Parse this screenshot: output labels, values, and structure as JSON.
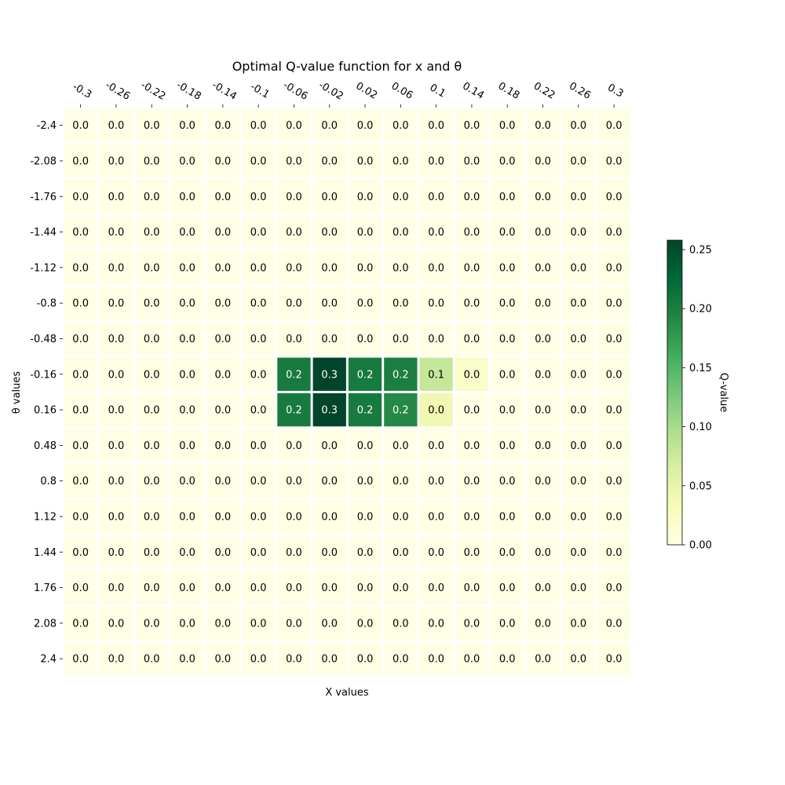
{
  "chart_data": {
    "type": "heatmap",
    "title": "Optimal Q-value function for x and θ",
    "xlabel": "X values",
    "ylabel": "θ values",
    "x_categories": [
      "-0.3",
      "-0.26",
      "-0.22",
      "-0.18",
      "-0.14",
      "-0.1",
      "-0.06",
      "-0.02",
      "0.02",
      "0.06",
      "0.1",
      "0.14",
      "0.18",
      "0.22",
      "0.26",
      "0.3"
    ],
    "y_categories": [
      "-2.4",
      "-2.08",
      "-1.76",
      "-1.44",
      "-1.12",
      "-0.8",
      "-0.48",
      "-0.16",
      "0.16",
      "0.48",
      "0.8",
      "1.12",
      "1.44",
      "1.76",
      "2.08",
      "2.4"
    ],
    "values": [
      [
        0,
        0,
        0,
        0,
        0,
        0,
        0,
        0,
        0,
        0,
        0,
        0,
        0,
        0,
        0,
        0
      ],
      [
        0,
        0,
        0,
        0,
        0,
        0,
        0,
        0,
        0,
        0,
        0,
        0,
        0,
        0,
        0,
        0
      ],
      [
        0,
        0,
        0,
        0,
        0,
        0,
        0,
        0,
        0,
        0,
        0,
        0,
        0,
        0,
        0,
        0
      ],
      [
        0,
        0,
        0,
        0,
        0,
        0,
        0,
        0,
        0,
        0,
        0,
        0,
        0,
        0,
        0,
        0
      ],
      [
        0,
        0,
        0,
        0,
        0,
        0,
        0,
        0,
        0,
        0,
        0,
        0,
        0,
        0,
        0,
        0
      ],
      [
        0,
        0,
        0,
        0,
        0,
        0,
        0,
        0,
        0,
        0,
        0,
        0,
        0,
        0,
        0,
        0
      ],
      [
        0,
        0,
        0,
        0,
        0,
        0,
        0,
        0,
        0,
        0,
        0,
        0,
        0,
        0,
        0,
        0
      ],
      [
        0,
        0,
        0,
        0,
        0,
        0,
        0.205,
        0.258,
        0.205,
        0.2,
        0.08,
        0.02,
        0,
        0,
        0,
        0
      ],
      [
        0,
        0,
        0,
        0,
        0,
        0,
        0.205,
        0.258,
        0.205,
        0.19,
        0.04,
        0,
        0,
        0,
        0,
        0
      ],
      [
        0,
        0,
        0,
        0,
        0,
        0,
        0,
        0,
        0,
        0,
        0,
        0,
        0,
        0,
        0,
        0
      ],
      [
        0,
        0,
        0,
        0,
        0,
        0,
        0,
        0,
        0,
        0,
        0,
        0,
        0,
        0,
        0,
        0
      ],
      [
        0,
        0,
        0,
        0,
        0,
        0,
        0,
        0,
        0,
        0,
        0,
        0,
        0,
        0,
        0,
        0
      ],
      [
        0,
        0,
        0,
        0,
        0,
        0,
        0,
        0,
        0,
        0,
        0,
        0,
        0,
        0,
        0,
        0
      ],
      [
        0,
        0,
        0,
        0,
        0,
        0,
        0,
        0,
        0,
        0,
        0,
        0,
        0,
        0,
        0,
        0
      ],
      [
        0,
        0,
        0,
        0,
        0,
        0,
        0,
        0,
        0,
        0,
        0,
        0,
        0,
        0,
        0,
        0
      ],
      [
        0,
        0,
        0,
        0,
        0,
        0,
        0,
        0,
        0,
        0,
        0,
        0,
        0,
        0,
        0,
        0
      ]
    ],
    "cell_labels": [
      [
        "0.0",
        "0.0",
        "0.0",
        "0.0",
        "0.0",
        "0.0",
        "0.0",
        "0.0",
        "0.0",
        "0.0",
        "0.0",
        "0.0",
        "0.0",
        "0.0",
        "0.0",
        "0.0"
      ],
      [
        "0.0",
        "0.0",
        "0.0",
        "0.0",
        "0.0",
        "0.0",
        "0.0",
        "0.0",
        "0.0",
        "0.0",
        "0.0",
        "0.0",
        "0.0",
        "0.0",
        "0.0",
        "0.0"
      ],
      [
        "0.0",
        "0.0",
        "0.0",
        "0.0",
        "0.0",
        "0.0",
        "0.0",
        "0.0",
        "0.0",
        "0.0",
        "0.0",
        "0.0",
        "0.0",
        "0.0",
        "0.0",
        "0.0"
      ],
      [
        "0.0",
        "0.0",
        "0.0",
        "0.0",
        "0.0",
        "0.0",
        "0.0",
        "0.0",
        "0.0",
        "0.0",
        "0.0",
        "0.0",
        "0.0",
        "0.0",
        "0.0",
        "0.0"
      ],
      [
        "0.0",
        "0.0",
        "0.0",
        "0.0",
        "0.0",
        "0.0",
        "0.0",
        "0.0",
        "0.0",
        "0.0",
        "0.0",
        "0.0",
        "0.0",
        "0.0",
        "0.0",
        "0.0"
      ],
      [
        "0.0",
        "0.0",
        "0.0",
        "0.0",
        "0.0",
        "0.0",
        "0.0",
        "0.0",
        "0.0",
        "0.0",
        "0.0",
        "0.0",
        "0.0",
        "0.0",
        "0.0",
        "0.0"
      ],
      [
        "0.0",
        "0.0",
        "0.0",
        "0.0",
        "0.0",
        "0.0",
        "0.0",
        "0.0",
        "0.0",
        "0.0",
        "0.0",
        "0.0",
        "0.0",
        "0.0",
        "0.0",
        "0.0"
      ],
      [
        "0.0",
        "0.0",
        "0.0",
        "0.0",
        "0.0",
        "0.0",
        "0.2",
        "0.3",
        "0.2",
        "0.2",
        "0.1",
        "0.0",
        "0.0",
        "0.0",
        "0.0",
        "0.0"
      ],
      [
        "0.0",
        "0.0",
        "0.0",
        "0.0",
        "0.0",
        "0.0",
        "0.2",
        "0.3",
        "0.2",
        "0.2",
        "0.0",
        "0.0",
        "0.0",
        "0.0",
        "0.0",
        "0.0"
      ],
      [
        "0.0",
        "0.0",
        "0.0",
        "0.0",
        "0.0",
        "0.0",
        "0.0",
        "0.0",
        "0.0",
        "0.0",
        "0.0",
        "0.0",
        "0.0",
        "0.0",
        "0.0",
        "0.0"
      ],
      [
        "0.0",
        "0.0",
        "0.0",
        "0.0",
        "0.0",
        "0.0",
        "0.0",
        "0.0",
        "0.0",
        "0.0",
        "0.0",
        "0.0",
        "0.0",
        "0.0",
        "0.0",
        "0.0"
      ],
      [
        "0.0",
        "0.0",
        "0.0",
        "0.0",
        "0.0",
        "0.0",
        "0.0",
        "0.0",
        "0.0",
        "0.0",
        "0.0",
        "0.0",
        "0.0",
        "0.0",
        "0.0",
        "0.0"
      ],
      [
        "0.0",
        "0.0",
        "0.0",
        "0.0",
        "0.0",
        "0.0",
        "0.0",
        "0.0",
        "0.0",
        "0.0",
        "0.0",
        "0.0",
        "0.0",
        "0.0",
        "0.0",
        "0.0"
      ],
      [
        "0.0",
        "0.0",
        "0.0",
        "0.0",
        "0.0",
        "0.0",
        "0.0",
        "0.0",
        "0.0",
        "0.0",
        "0.0",
        "0.0",
        "0.0",
        "0.0",
        "0.0",
        "0.0"
      ],
      [
        "0.0",
        "0.0",
        "0.0",
        "0.0",
        "0.0",
        "0.0",
        "0.0",
        "0.0",
        "0.0",
        "0.0",
        "0.0",
        "0.0",
        "0.0",
        "0.0",
        "0.0",
        "0.0"
      ],
      [
        "0.0",
        "0.0",
        "0.0",
        "0.0",
        "0.0",
        "0.0",
        "0.0",
        "0.0",
        "0.0",
        "0.0",
        "0.0",
        "0.0",
        "0.0",
        "0.0",
        "0.0",
        "0.0"
      ]
    ],
    "colorbar": {
      "label": "Q-value",
      "range": [
        0,
        0.258
      ],
      "ticks": [
        0.0,
        0.05,
        0.1,
        0.15,
        0.2,
        0.25
      ],
      "tick_labels": [
        "0.00",
        "0.05",
        "0.10",
        "0.15",
        "0.20",
        "0.25"
      ],
      "colormap": "YlGn",
      "colormap_stops": [
        "#ffffe5",
        "#f7fcb9",
        "#d9f0a3",
        "#addd8e",
        "#78c679",
        "#41ab5d",
        "#238443",
        "#006837",
        "#004529"
      ]
    },
    "cell_gap_color": "#ffffff",
    "dark_label_color": "#000000",
    "light_label_color": "#ffffff"
  }
}
